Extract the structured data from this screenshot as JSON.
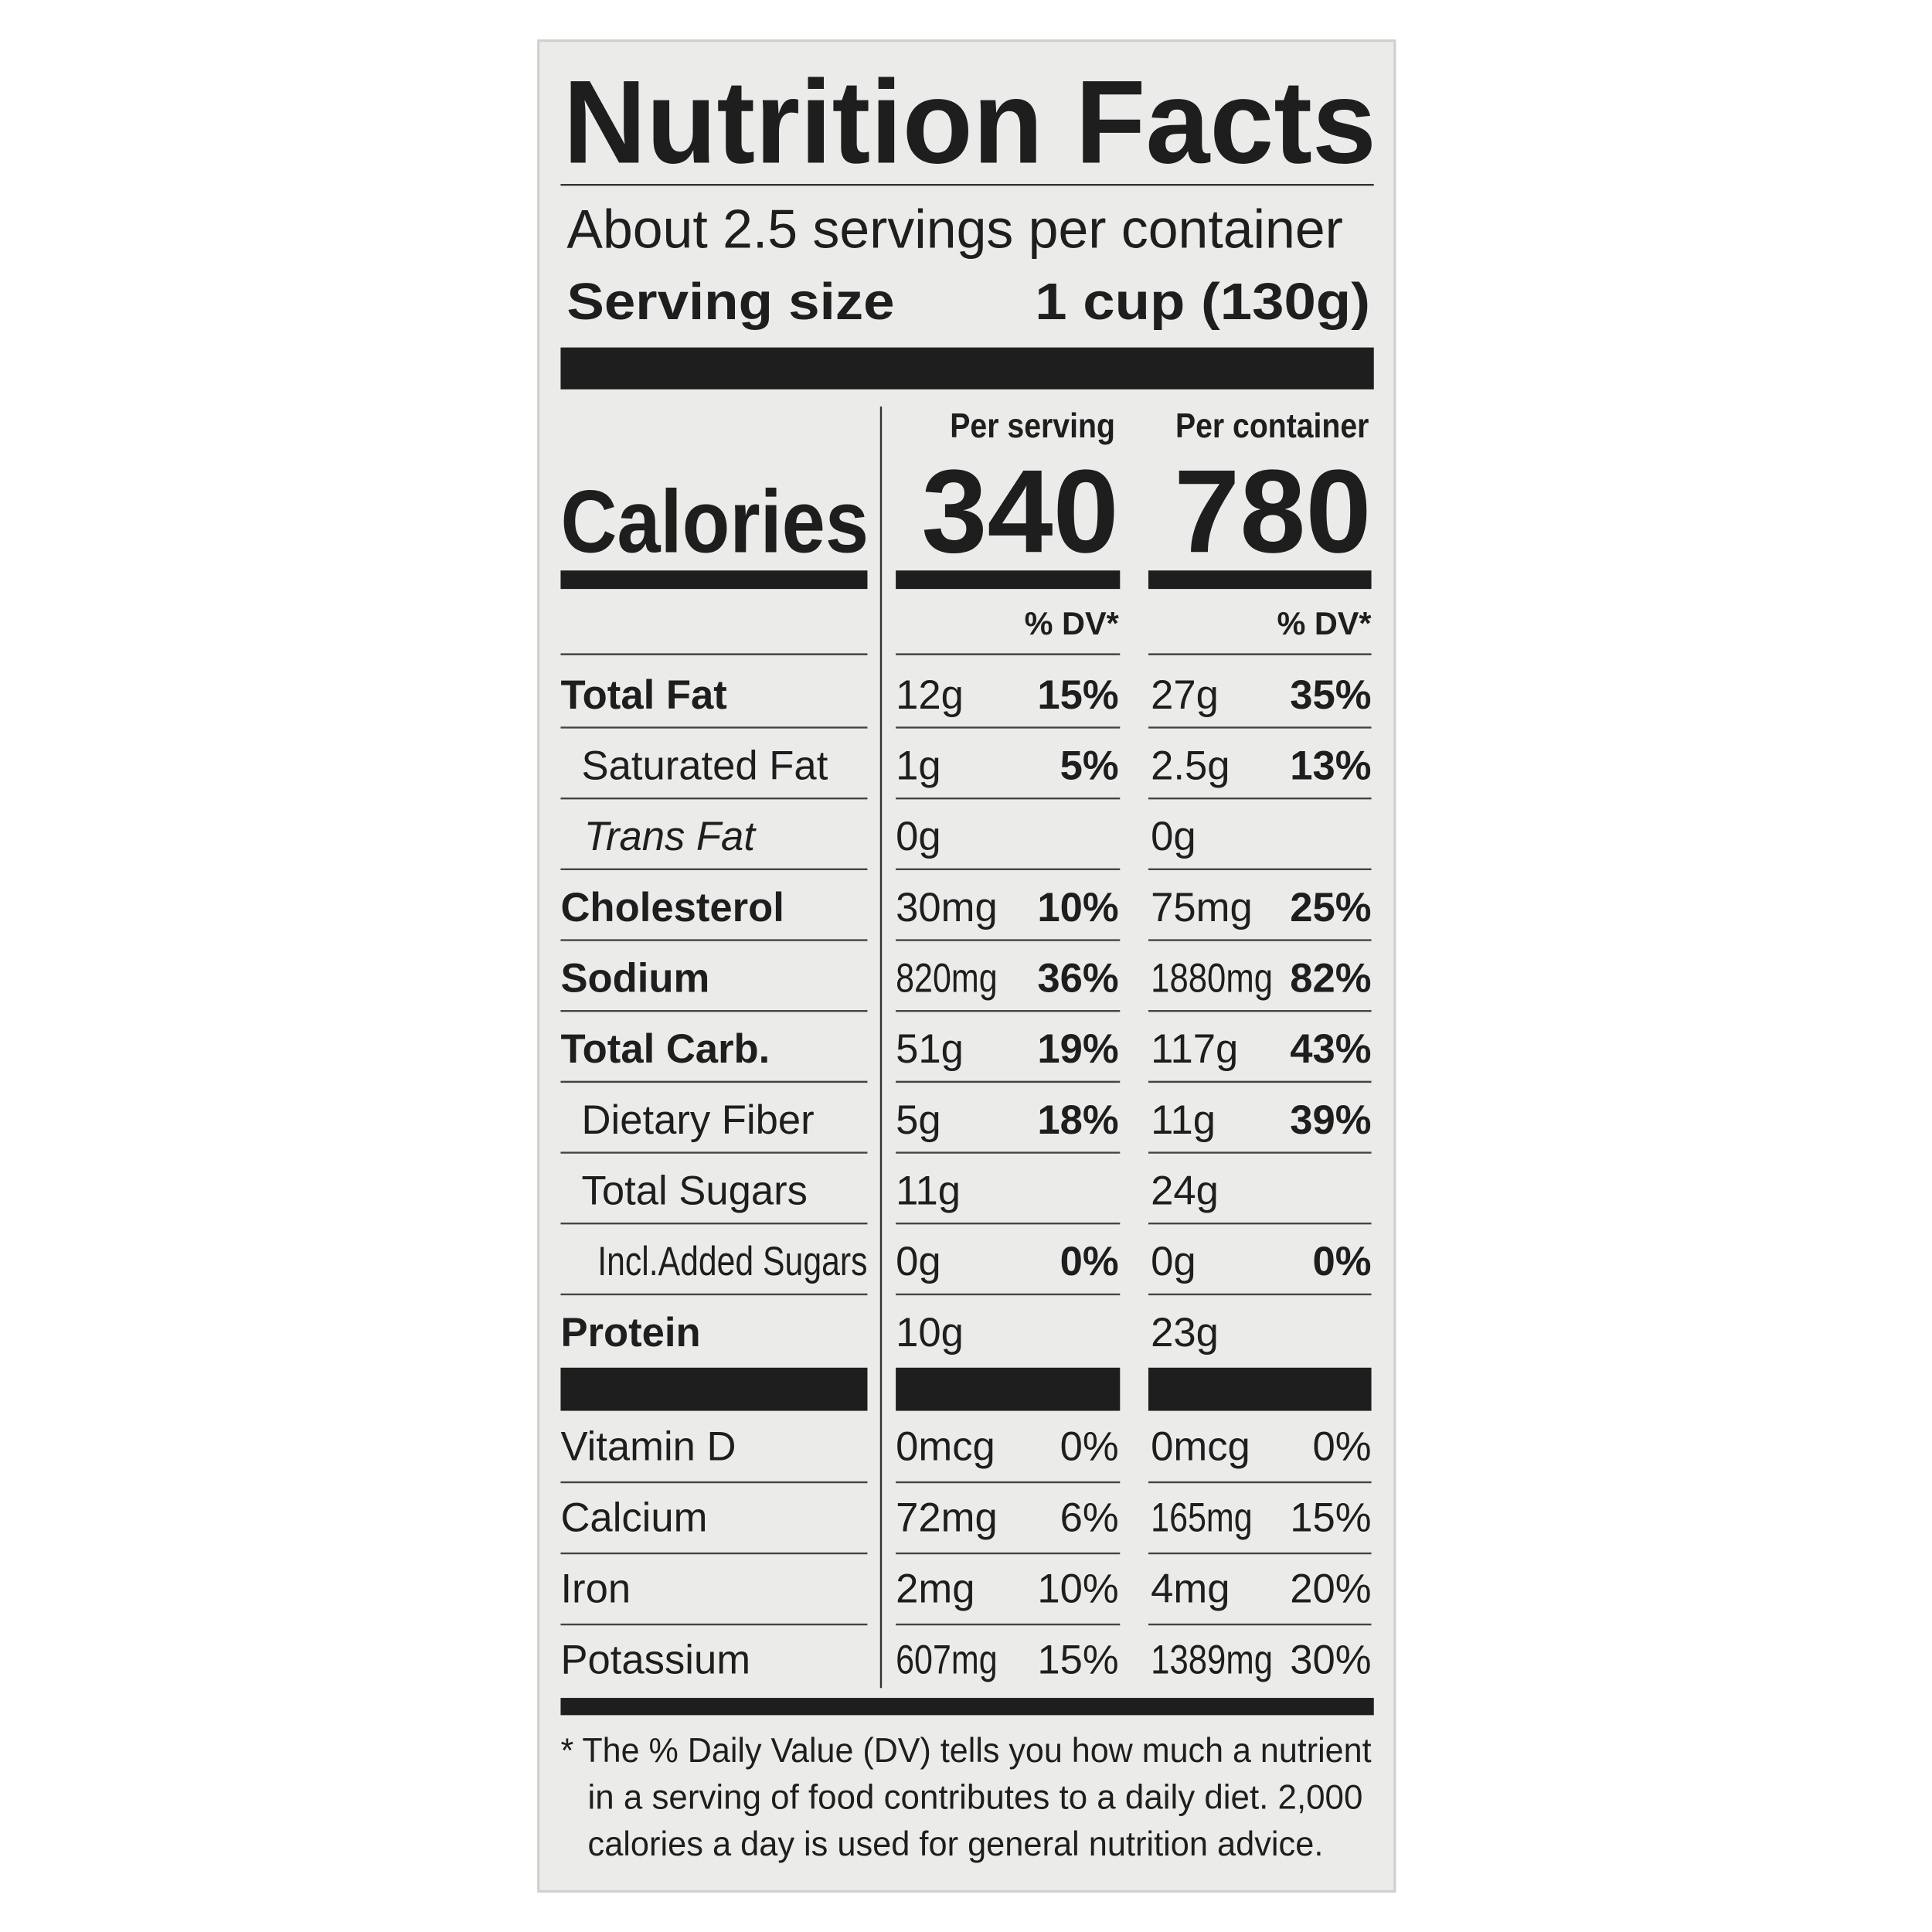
{
  "title": "Nutrition Facts",
  "servings_per_container": "About 2.5 servings per container",
  "serving_size": {
    "label": "Serving size",
    "value": "1 cup (130g)"
  },
  "columns": [
    "Per serving",
    "Per container"
  ],
  "calories": {
    "label": "Calories",
    "values": [
      "340",
      "780"
    ]
  },
  "dv_header": "% DV*",
  "nutrients": [
    {
      "name": "Total Fat",
      "per_serving": [
        "12g",
        "15%"
      ],
      "per_container": [
        "27g",
        "35%"
      ]
    },
    {
      "name": "Saturated Fat",
      "per_serving": [
        "1g",
        "5%"
      ],
      "per_container": [
        "2.5g",
        "13%"
      ]
    },
    {
      "name": "Trans Fat",
      "per_serving": [
        "0g",
        null
      ],
      "per_container": [
        "0g",
        null
      ]
    },
    {
      "name": "Cholesterol",
      "per_serving": [
        "30mg",
        "10%"
      ],
      "per_container": [
        "75mg",
        "25%"
      ]
    },
    {
      "name": "Sodium",
      "per_serving": [
        "820mg",
        "36%"
      ],
      "per_container": [
        "1880mg",
        "82%"
      ]
    },
    {
      "name": "Total Carb.",
      "per_serving": [
        "51g",
        "19%"
      ],
      "per_container": [
        "117g",
        "43%"
      ]
    },
    {
      "name": "Dietary Fiber",
      "per_serving": [
        "5g",
        "18%"
      ],
      "per_container": [
        "11g",
        "39%"
      ]
    },
    {
      "name": "Total Sugars",
      "per_serving": [
        "11g",
        null
      ],
      "per_container": [
        "24g",
        null
      ]
    },
    {
      "name": "Incl.Added Sugars",
      "per_serving": [
        "0g",
        "0%"
      ],
      "per_container": [
        "0g",
        "0%"
      ]
    },
    {
      "name": "Protein",
      "per_serving": [
        "10g",
        null
      ],
      "per_container": [
        "23g",
        null
      ]
    }
  ],
  "vitamins": [
    {
      "name": "Vitamin D",
      "per_serving": [
        "0mcg",
        "0%"
      ],
      "per_container": [
        "0mcg",
        "0%"
      ]
    },
    {
      "name": "Calcium",
      "per_serving": [
        "72mg",
        "6%"
      ],
      "per_container": [
        "165mg",
        "15%"
      ]
    },
    {
      "name": "Iron",
      "per_serving": [
        "2mg",
        "10%"
      ],
      "per_container": [
        "4mg",
        "20%"
      ]
    },
    {
      "name": "Potassium",
      "per_serving": [
        "607mg",
        "15%"
      ],
      "per_container": [
        "1389mg",
        "30%"
      ]
    }
  ],
  "footnote": [
    "* The % Daily Value (DV) tells you how much a nutrient",
    "in a serving of food contributes to a daily diet. 2,000",
    "calories a day is used for general nutrition advice."
  ]
}
